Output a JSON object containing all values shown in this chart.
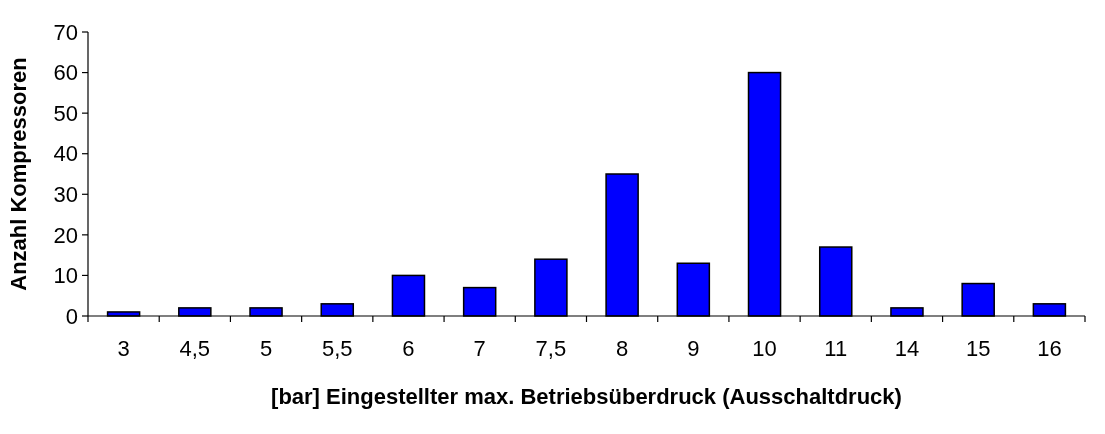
{
  "chart_data": {
    "type": "bar",
    "xlabel": "[bar] Eingestellter max. Betriebsüberdruck (Ausschaltdruck)",
    "ylabel": "Anzahl Kompressoren",
    "categories": [
      "3",
      "4,5",
      "5",
      "5,5",
      "6",
      "7",
      "7,5",
      "8",
      "9",
      "10",
      "11",
      "14",
      "15",
      "16"
    ],
    "values": [
      1,
      2,
      2,
      3,
      10,
      7,
      14,
      35,
      13,
      60,
      17,
      2,
      8,
      3
    ],
    "color": "#0000ff",
    "ylim": [
      0,
      70
    ],
    "yticks": [
      0,
      10,
      20,
      30,
      40,
      50,
      60,
      70
    ],
    "grid": false
  }
}
